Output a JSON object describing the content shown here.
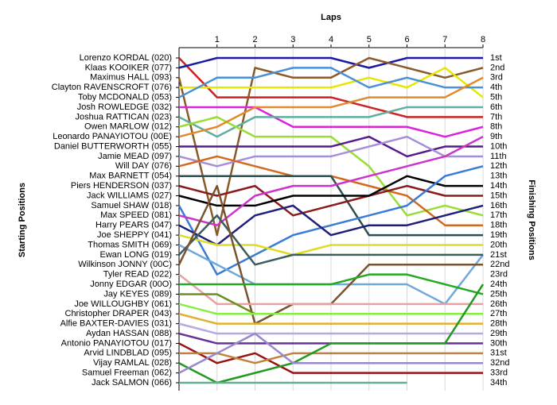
{
  "chart_data": {
    "type": "line",
    "title": "Laps",
    "ylabel": "Starting Positions",
    "y2label": "Finishing Positions",
    "x": [
      0,
      1,
      2,
      3,
      4,
      5,
      6,
      7,
      8
    ],
    "xlim": [
      0,
      8
    ],
    "xticks": [
      1,
      2,
      3,
      4,
      5,
      6,
      7,
      8
    ],
    "ylim": [
      1,
      34
    ],
    "y2_labels": [
      "1st",
      "2nd",
      "3rd",
      "4th",
      "5th",
      "6th",
      "7th",
      "8th",
      "9th",
      "10th",
      "11th",
      "12th",
      "13th",
      "14th",
      "15th",
      "16th",
      "17th",
      "18th",
      "19th",
      "20th",
      "21st",
      "22nd",
      "23rd",
      "24th",
      "25th",
      "26th",
      "27th",
      "28th",
      "29th",
      "30th",
      "31st",
      "32nd",
      "33rd",
      "34th"
    ],
    "grid": true,
    "series": [
      {
        "name": "Lorenzo KORDAL (020)",
        "color": "#cc2222",
        "values": [
          1,
          5,
          5,
          5,
          5,
          6,
          7,
          7,
          7
        ]
      },
      {
        "name": "Klaas KOOIKER (077)",
        "color": "#1a1aa6",
        "values": [
          2,
          1,
          1,
          1,
          1,
          2,
          1,
          1,
          1
        ]
      },
      {
        "name": "Maximus HALL (093)",
        "color": "#8b5a2b",
        "values": [
          3,
          19,
          2,
          3,
          3,
          1,
          2,
          3,
          2
        ]
      },
      {
        "name": "Clayton RAVENSCROFT (076)",
        "color": "#e6e600",
        "values": [
          4,
          4,
          4,
          4,
          4,
          3,
          4,
          2,
          5
        ]
      },
      {
        "name": "Toby MCDONALD (053)",
        "color": "#4a90d9",
        "values": [
          5,
          3,
          3,
          2,
          2,
          4,
          3,
          4,
          4
        ]
      },
      {
        "name": "Josh ROWLEDGE (032)",
        "color": "#dd22dd",
        "values": [
          6,
          6,
          6,
          8,
          8,
          8,
          8,
          9,
          8
        ]
      },
      {
        "name": "Joshua RATTICAN (023)",
        "color": "#5fae9f",
        "values": [
          7,
          9,
          7,
          7,
          7,
          7,
          6,
          6,
          6
        ]
      },
      {
        "name": "Owen MARLOW (012)",
        "color": "#99dd33",
        "values": [
          8,
          7,
          9,
          9,
          9,
          12,
          17,
          16,
          17
        ]
      },
      {
        "name": "Leonardo PANAYIOTOU (00E)",
        "color": "#e08a2e",
        "values": [
          9,
          8,
          6,
          6,
          6,
          5,
          5,
          5,
          3
        ]
      },
      {
        "name": "Daniel BUTTERWORTH (055)",
        "color": "#551a8b",
        "values": [
          10,
          10,
          10,
          10,
          10,
          9,
          11,
          10,
          10
        ]
      },
      {
        "name": "Jamie MEAD (097)",
        "color": "#a58fd6",
        "values": [
          11,
          12,
          11,
          11,
          11,
          10,
          9,
          11,
          11
        ]
      },
      {
        "name": "Will DAY (076)",
        "color": "#d2691e",
        "values": [
          12,
          11,
          12,
          13,
          13,
          14,
          15,
          18,
          18
        ]
      },
      {
        "name": "Max BARNETT (054)",
        "color": "#2f4f4f",
        "values": [
          13,
          13,
          13,
          13,
          13,
          19,
          19,
          19,
          19
        ]
      },
      {
        "name": "Piers HENDERSON (037)",
        "color": "#8b1a1a",
        "values": [
          14,
          15,
          14,
          17,
          16,
          15,
          14,
          15,
          15
        ]
      },
      {
        "name": "Jack WILLIAMS (027)",
        "color": "#000000",
        "values": [
          15,
          16,
          16,
          15,
          15,
          15,
          13,
          14,
          14
        ]
      },
      {
        "name": "Samuel SHAW (018)",
        "color": "#3a7bd5",
        "values": [
          16,
          23,
          21,
          19,
          18,
          17,
          16,
          13,
          12
        ]
      },
      {
        "name": "Max SPEED (081)",
        "color": "#cc33cc",
        "values": [
          17,
          18,
          15,
          14,
          14,
          13,
          12,
          11,
          9
        ]
      },
      {
        "name": "Harry PEARS (047)",
        "color": "#1f1f7a",
        "values": [
          18,
          20,
          17,
          16,
          19,
          18,
          18,
          17,
          16
        ]
      },
      {
        "name": "Joe SHEPPY (041)",
        "color": "#dddd22",
        "values": [
          19,
          20,
          20,
          21,
          20,
          20,
          20,
          20,
          20
        ]
      },
      {
        "name": "Thomas SMITH (069)",
        "color": "#6fa8dc",
        "values": [
          20,
          22,
          24,
          24,
          24,
          24,
          24,
          26,
          21
        ]
      },
      {
        "name": "Ewan LONG (019)",
        "color": "#3d5c5c",
        "values": [
          21,
          17,
          22,
          21,
          21,
          21,
          21,
          21,
          21
        ]
      },
      {
        "name": "Wilkinson JONNY (00C)",
        "color": "#7a5230",
        "values": [
          22,
          14,
          28,
          26,
          26,
          22,
          22,
          22,
          22
        ]
      },
      {
        "name": "Tyler READ (022)",
        "color": "#e8a0a0",
        "values": [
          23,
          26,
          26,
          26,
          26,
          26,
          26,
          26,
          26
        ]
      },
      {
        "name": "Jonny EDGAR (00O)",
        "color": "#22aa22",
        "values": [
          24,
          24,
          24,
          24,
          24,
          23,
          23,
          24,
          25
        ]
      },
      {
        "name": "Jay KEYES (089)",
        "color": "#6b8e23",
        "values": [
          25,
          25,
          27,
          27,
          27,
          27,
          27,
          27,
          27
        ]
      },
      {
        "name": "Joe WILLOUGHBY (061)",
        "color": "#88ee44",
        "values": [
          26,
          27,
          27,
          27,
          27,
          27,
          27,
          27,
          27
        ]
      },
      {
        "name": "Christopher DRAPER (043)",
        "color": "#e0b030",
        "values": [
          27,
          28,
          28,
          28,
          28,
          28,
          28,
          28,
          28
        ]
      },
      {
        "name": "Alfie BAXTER-DAVIES (031)",
        "color": "#b8a8e0",
        "values": [
          28,
          29,
          29,
          29,
          29,
          29,
          29,
          29,
          29
        ]
      },
      {
        "name": "Aydan HASSAN (088)",
        "color": "#663399",
        "values": [
          29,
          30,
          30,
          30,
          30,
          30,
          30,
          30,
          30
        ]
      },
      {
        "name": "Antonio PANAYIOTOU (017)",
        "color": "#991111",
        "values": [
          30,
          32,
          31,
          33,
          33,
          33,
          33,
          33,
          33
        ]
      },
      {
        "name": "Arvid LINDBLAD (095)",
        "color": "#c08040",
        "values": [
          31,
          31,
          32,
          31,
          31,
          31,
          31,
          31,
          31
        ]
      },
      {
        "name": "Vijay RAMLAL (028)",
        "color": "#229922",
        "values": [
          32,
          34,
          33,
          32,
          30,
          30,
          30,
          30,
          24
        ]
      },
      {
        "name": "Samuel Freeman (062)",
        "color": "#9988cc",
        "values": [
          33,
          31,
          29,
          32,
          32,
          32,
          32,
          32,
          32
        ]
      },
      {
        "name": "Jack SALMON (066)",
        "color": "#66aa99",
        "values": [
          34,
          34,
          34,
          34,
          34,
          34,
          34,
          null,
          null
        ]
      }
    ]
  }
}
